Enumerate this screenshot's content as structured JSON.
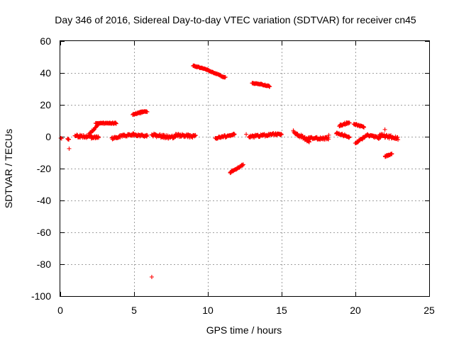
{
  "chart_data": {
    "type": "scatter",
    "title": "Day 346 of 2016, Sidereal Day-to-day VTEC variation (SDTVAR) for receiver cn45",
    "xlabel": "GPS time / hours",
    "ylabel": "SDTVAR / TECUs",
    "xlim": [
      0,
      25
    ],
    "ylim": [
      -100,
      60
    ],
    "xticks": [
      0,
      5,
      10,
      15,
      20,
      25
    ],
    "yticks": [
      -100,
      -80,
      -60,
      -40,
      -20,
      0,
      20,
      40,
      60
    ],
    "grid": true,
    "marker": "+",
    "color": "#ff0000",
    "segments": [
      {
        "x0": 0.05,
        "x1": 0.1,
        "y0": -1.0,
        "y1": -1.0,
        "noise": 0.3
      },
      {
        "x0": 0.5,
        "x1": 0.6,
        "y0": -1.5,
        "y1": -1.5,
        "noise": 0.5
      },
      {
        "x0": 1.0,
        "x1": 2.6,
        "y0": 0.5,
        "y1": -0.5,
        "noise": 1.8
      },
      {
        "x0": 2.0,
        "x1": 2.6,
        "y0": 2.0,
        "y1": 8.0,
        "noise": 0.8
      },
      {
        "x0": 2.4,
        "x1": 3.8,
        "y0": 8.5,
        "y1": 8.5,
        "noise": 0.7
      },
      {
        "x0": 3.5,
        "x1": 4.2,
        "y0": -1.0,
        "y1": 0.5,
        "noise": 1.2
      },
      {
        "x0": 4.2,
        "x1": 5.0,
        "y0": 0.5,
        "y1": 1.5,
        "noise": 1.5
      },
      {
        "x0": 4.9,
        "x1": 5.6,
        "y0": 14.0,
        "y1": 15.5,
        "noise": 0.8
      },
      {
        "x0": 5.4,
        "x1": 5.9,
        "y0": 15.5,
        "y1": 15.8,
        "noise": 0.5
      },
      {
        "x0": 5.0,
        "x1": 5.9,
        "y0": 1.0,
        "y1": 0.5,
        "noise": 1.2
      },
      {
        "x0": 6.2,
        "x1": 7.8,
        "y0": 1.0,
        "y1": -0.5,
        "noise": 2.0
      },
      {
        "x0": 7.8,
        "x1": 9.2,
        "y0": 1.0,
        "y1": 0.0,
        "noise": 2.0
      },
      {
        "x0": 9.0,
        "x1": 9.8,
        "y0": 44.5,
        "y1": 42.5,
        "noise": 0.6
      },
      {
        "x0": 9.8,
        "x1": 11.2,
        "y0": 42.5,
        "y1": 37.0,
        "noise": 0.6
      },
      {
        "x0": 10.5,
        "x1": 11.2,
        "y0": -1.0,
        "y1": 0.5,
        "noise": 1.0
      },
      {
        "x0": 11.2,
        "x1": 11.8,
        "y0": 0.0,
        "y1": 1.5,
        "noise": 1.0
      },
      {
        "x0": 11.5,
        "x1": 12.4,
        "y0": -22.5,
        "y1": -17.5,
        "noise": 0.8
      },
      {
        "x0": 13.0,
        "x1": 13.6,
        "y0": 33.5,
        "y1": 33.0,
        "noise": 0.5
      },
      {
        "x0": 13.6,
        "x1": 14.2,
        "y0": 33.0,
        "y1": 31.5,
        "noise": 0.6
      },
      {
        "x0": 12.8,
        "x1": 15.0,
        "y0": 0.0,
        "y1": 2.0,
        "noise": 1.5
      },
      {
        "x0": 15.8,
        "x1": 16.9,
        "y0": 3.0,
        "y1": -3.0,
        "noise": 2.2
      },
      {
        "x0": 16.5,
        "x1": 18.2,
        "y0": -1.0,
        "y1": -1.0,
        "noise": 1.5
      },
      {
        "x0": 18.9,
        "x1": 19.6,
        "y0": 7.0,
        "y1": 9.0,
        "noise": 1.2
      },
      {
        "x0": 18.7,
        "x1": 19.6,
        "y0": 2.0,
        "y1": 0.0,
        "noise": 1.5
      },
      {
        "x0": 19.9,
        "x1": 20.6,
        "y0": 8.0,
        "y1": 6.0,
        "noise": 0.8
      },
      {
        "x0": 20.0,
        "x1": 20.8,
        "y0": -4.0,
        "y1": 1.0,
        "noise": 1.0
      },
      {
        "x0": 20.8,
        "x1": 21.7,
        "y0": 1.0,
        "y1": -1.0,
        "noise": 1.2
      },
      {
        "x0": 21.6,
        "x1": 22.9,
        "y0": 1.0,
        "y1": -1.0,
        "noise": 2.0
      },
      {
        "x0": 22.0,
        "x1": 22.5,
        "y0": -12.5,
        "y1": -10.5,
        "noise": 0.8
      }
    ],
    "outliers": [
      {
        "x": 0.6,
        "y": -7.5
      },
      {
        "x": 12.6,
        "y": 1.5
      },
      {
        "x": 18.2,
        "y": 1.0
      },
      {
        "x": 22.0,
        "y": 4.5
      },
      {
        "x": 6.2,
        "y": -88.0
      }
    ]
  }
}
